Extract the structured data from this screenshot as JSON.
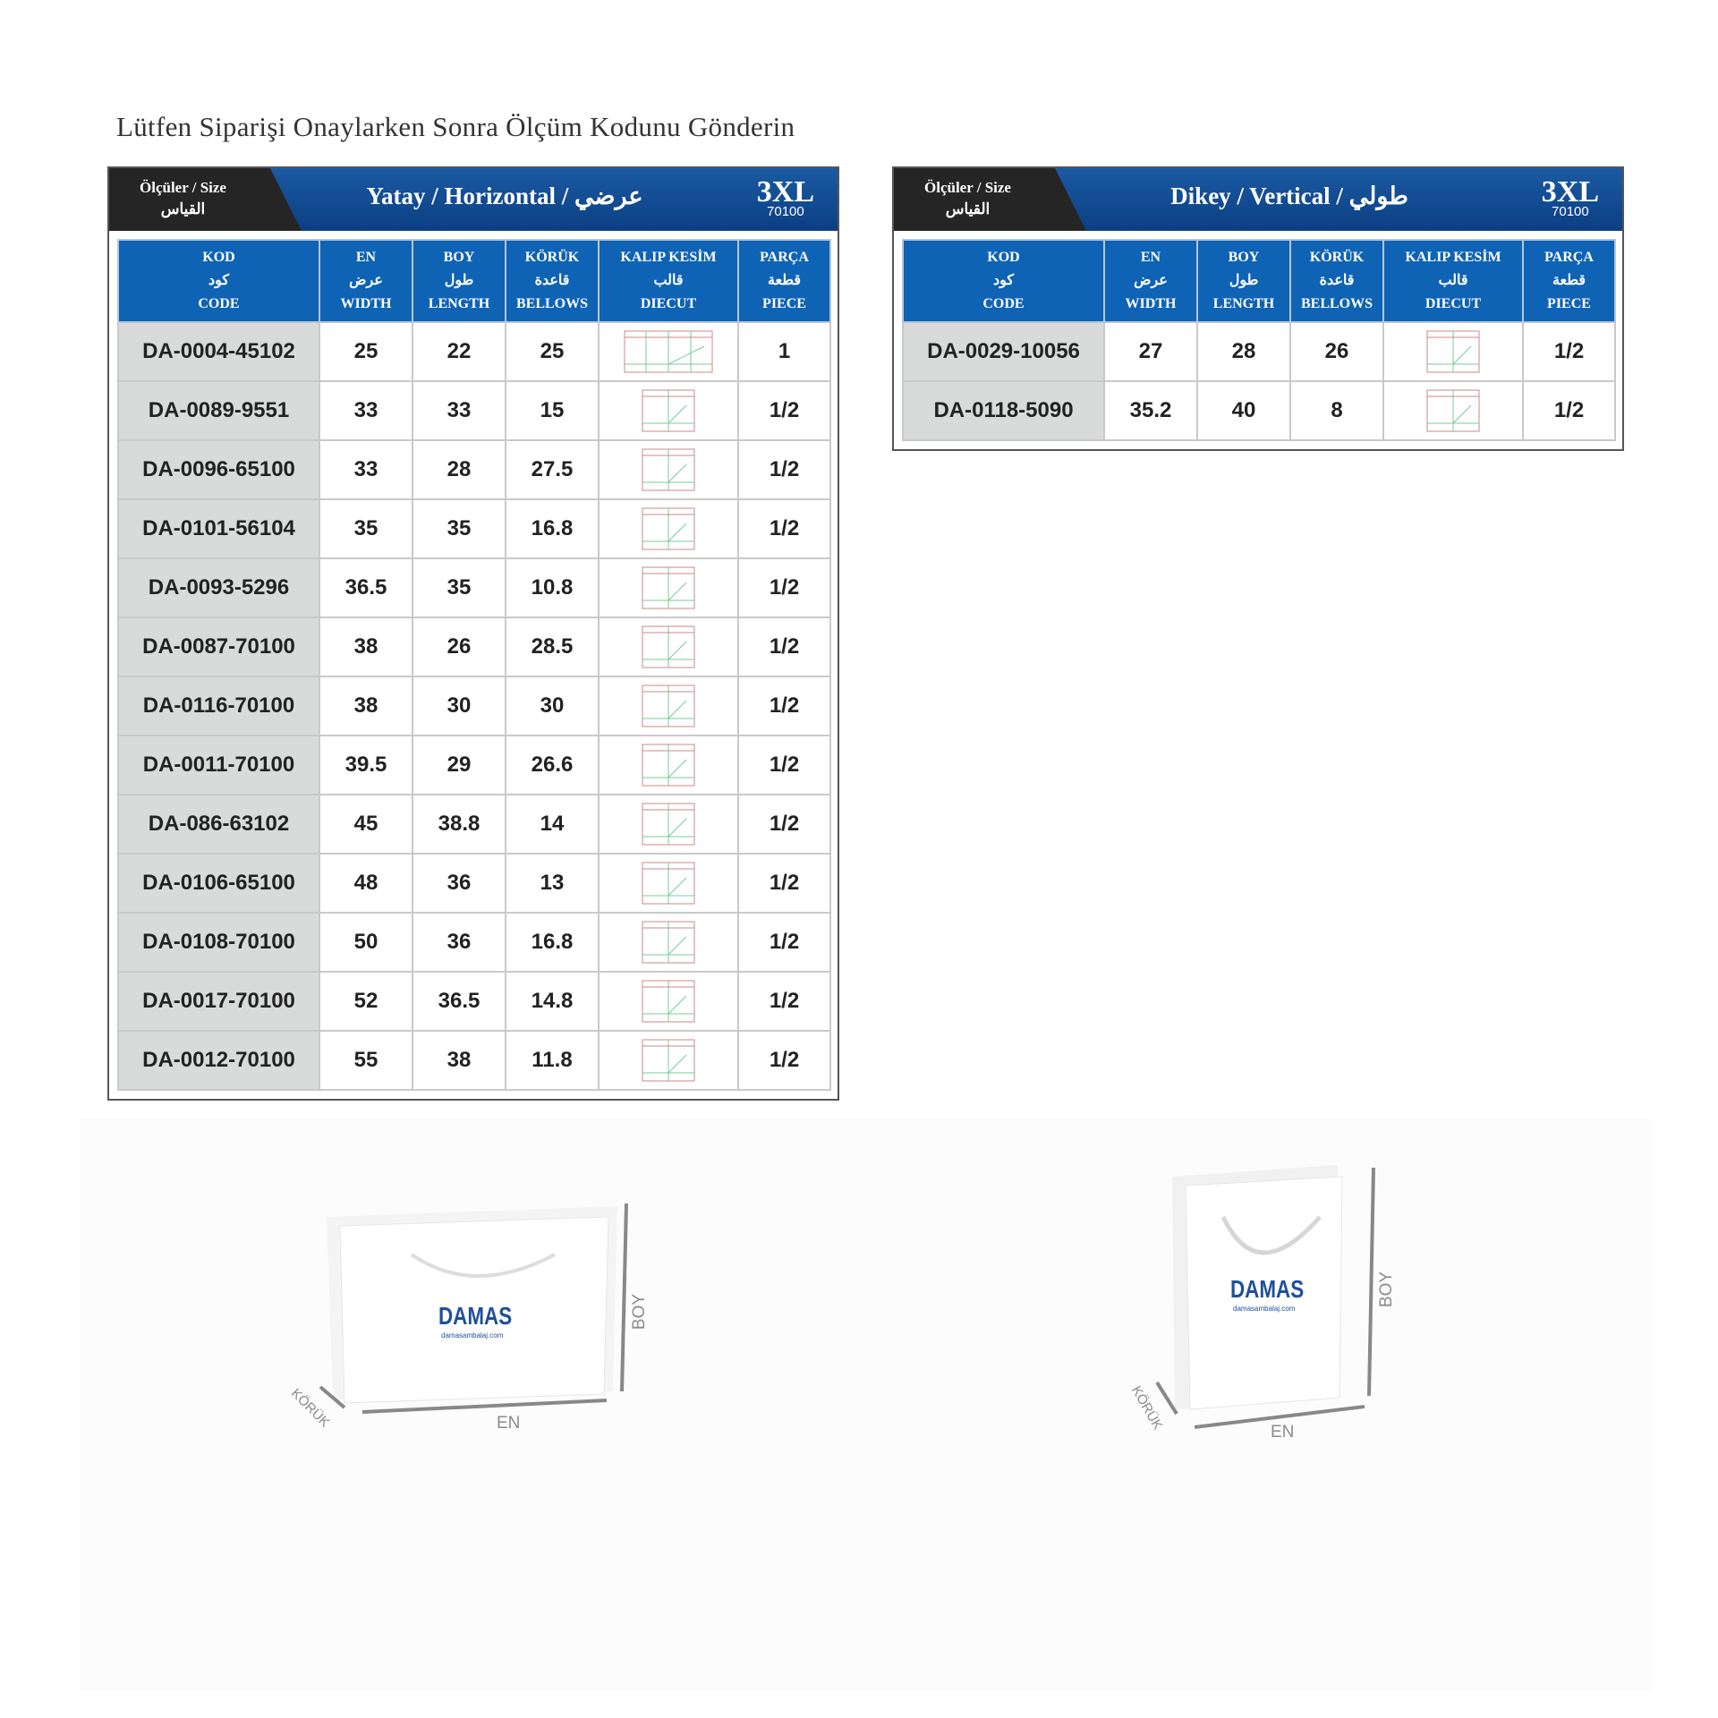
{
  "title": "Lütfen Siparişi Onaylarken Sonra Ölçüm Kodunu Gönderin",
  "size_label": {
    "line1": "Ölçüler / Size",
    "line2": "القياس"
  },
  "columns": [
    {
      "l1": "KOD",
      "l2": "كود",
      "l3": "CODE"
    },
    {
      "l1": "EN",
      "l2": "عرض",
      "l3": "WIDTH"
    },
    {
      "l1": "BOY",
      "l2": "طول",
      "l3": "LENGTH"
    },
    {
      "l1": "KÖRÜK",
      "l2": "قاعدة",
      "l3": "BELLOWS"
    },
    {
      "l1": "KALIP KESİM",
      "l2": "قالب",
      "l3": "DIECUT"
    },
    {
      "l1": "PARÇA",
      "l2": "قطعة",
      "l3": "PIECE"
    }
  ],
  "horizontal": {
    "title": "Yatay / Horizontal / عرضي",
    "size": "3XL",
    "size_code": "70100",
    "rows": [
      {
        "code": "DA-0004-45102",
        "en": "25",
        "boy": "22",
        "koruk": "25",
        "piece": "1"
      },
      {
        "code": "DA-0089-9551",
        "en": "33",
        "boy": "33",
        "koruk": "15",
        "piece": "1/2"
      },
      {
        "code": "DA-0096-65100",
        "en": "33",
        "boy": "28",
        "koruk": "27.5",
        "piece": "1/2"
      },
      {
        "code": "DA-0101-56104",
        "en": "35",
        "boy": "35",
        "koruk": "16.8",
        "piece": "1/2"
      },
      {
        "code": "DA-0093-5296",
        "en": "36.5",
        "boy": "35",
        "koruk": "10.8",
        "piece": "1/2"
      },
      {
        "code": "DA-0087-70100",
        "en": "38",
        "boy": "26",
        "koruk": "28.5",
        "piece": "1/2"
      },
      {
        "code": "DA-0116-70100",
        "en": "38",
        "boy": "30",
        "koruk": "30",
        "piece": "1/2"
      },
      {
        "code": "DA-0011-70100",
        "en": "39.5",
        "boy": "29",
        "koruk": "26.6",
        "piece": "1/2"
      },
      {
        "code": "DA-086-63102",
        "en": "45",
        "boy": "38.8",
        "koruk": "14",
        "piece": "1/2"
      },
      {
        "code": "DA-0106-65100",
        "en": "48",
        "boy": "36",
        "koruk": "13",
        "piece": "1/2"
      },
      {
        "code": "DA-0108-70100",
        "en": "50",
        "boy": "36",
        "koruk": "16.8",
        "piece": "1/2"
      },
      {
        "code": "DA-0017-70100",
        "en": "52",
        "boy": "36.5",
        "koruk": "14.8",
        "piece": "1/2"
      },
      {
        "code": "DA-0012-70100",
        "en": "55",
        "boy": "38",
        "koruk": "11.8",
        "piece": "1/2"
      }
    ]
  },
  "vertical": {
    "title": "Dikey / Vertical / طولي",
    "size": "3XL",
    "size_code": "70100",
    "rows": [
      {
        "code": "DA-0029-10056",
        "en": "27",
        "boy": "28",
        "koruk": "26",
        "piece": "1/2"
      },
      {
        "code": "DA-0118-5090",
        "en": "35.2",
        "boy": "40",
        "koruk": "8",
        "piece": "1/2"
      }
    ]
  },
  "bags": {
    "brand": "DAMAS",
    "brand_sub": "damasambalaj.com",
    "dim_en": "EN",
    "dim_boy": "BOY",
    "dim_koruk": "KÖRÜK",
    "brand_color": "#1f4f9c"
  }
}
